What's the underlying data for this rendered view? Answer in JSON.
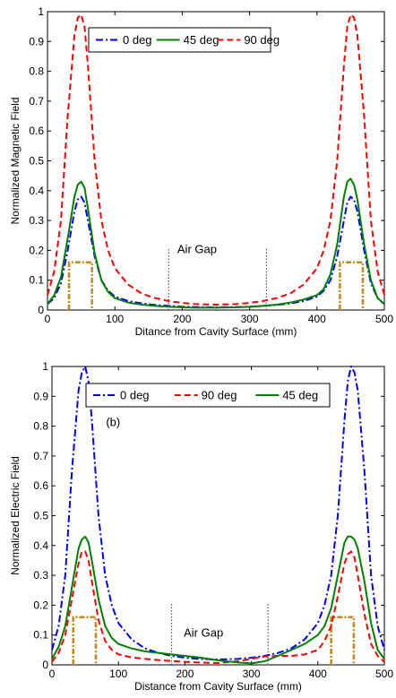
{
  "chart_data": [
    {
      "type": "line",
      "title": "",
      "xlabel": "Ditance from Cavity Surface (mm)",
      "ylabel": "Normalized Magnetic Field",
      "xlim": [
        0,
        500
      ],
      "ylim": [
        0,
        1
      ],
      "xticks": [
        "0",
        "100",
        "200",
        "300",
        "400",
        "500"
      ],
      "yticks": [
        "0",
        "0.1",
        "0.2",
        "0.3",
        "0.4",
        "0.5",
        "0.6",
        "0.7",
        "0.8",
        "0.9",
        "1"
      ],
      "legend": {
        "placement": "top-center"
      },
      "grid": false,
      "annotations": [
        {
          "text": "Air Gap",
          "x": 222,
          "y": 0.19
        }
      ],
      "gap_markers": {
        "x": [
          180,
          325
        ],
        "y_top": 0.21,
        "color": "#555555"
      },
      "rectangles": {
        "color": "#c08a20",
        "height": 0.16,
        "spans": [
          [
            32,
            66
          ],
          [
            434,
            468
          ]
        ]
      },
      "series": [
        {
          "name": "0 deg",
          "color": "#0000ff",
          "dash": "dashdot",
          "x": [
            0,
            10,
            20,
            30,
            40,
            45,
            50,
            55,
            60,
            70,
            80,
            90,
            100,
            120,
            140,
            160,
            180,
            200,
            220,
            250,
            280,
            300,
            320,
            340,
            360,
            380,
            400,
            410,
            420,
            430,
            440,
            445,
            450,
            455,
            460,
            470,
            480,
            490,
            500
          ],
          "y": [
            0.02,
            0.04,
            0.09,
            0.2,
            0.33,
            0.37,
            0.38,
            0.36,
            0.3,
            0.18,
            0.1,
            0.065,
            0.045,
            0.03,
            0.022,
            0.017,
            0.014,
            0.011,
            0.01,
            0.009,
            0.01,
            0.011,
            0.014,
            0.017,
            0.022,
            0.03,
            0.045,
            0.065,
            0.1,
            0.18,
            0.3,
            0.36,
            0.38,
            0.37,
            0.33,
            0.2,
            0.09,
            0.04,
            0.02
          ]
        },
        {
          "name": "45 deg",
          "color": "#008000",
          "dash": "solid",
          "x": [
            0,
            10,
            20,
            30,
            40,
            45,
            50,
            55,
            60,
            70,
            80,
            90,
            100,
            120,
            140,
            160,
            180,
            200,
            220,
            250,
            280,
            300,
            320,
            340,
            360,
            380,
            400,
            410,
            420,
            430,
            440,
            445,
            450,
            455,
            460,
            470,
            480,
            490,
            500
          ],
          "y": [
            0.02,
            0.05,
            0.11,
            0.24,
            0.38,
            0.42,
            0.43,
            0.41,
            0.34,
            0.19,
            0.1,
            0.06,
            0.04,
            0.025,
            0.018,
            0.014,
            0.011,
            0.009,
            0.008,
            0.008,
            0.009,
            0.011,
            0.014,
            0.018,
            0.025,
            0.035,
            0.05,
            0.07,
            0.12,
            0.22,
            0.38,
            0.43,
            0.44,
            0.42,
            0.37,
            0.22,
            0.1,
            0.04,
            0.02
          ]
        },
        {
          "name": "90 deg",
          "color": "#ff0000",
          "dash": "dashed",
          "x": [
            0,
            10,
            20,
            30,
            40,
            45,
            50,
            55,
            60,
            70,
            80,
            90,
            100,
            120,
            140,
            160,
            180,
            200,
            220,
            250,
            280,
            300,
            320,
            340,
            360,
            380,
            400,
            410,
            420,
            430,
            440,
            445,
            450,
            455,
            460,
            470,
            480,
            490,
            500
          ],
          "y": [
            0.05,
            0.13,
            0.3,
            0.65,
            0.92,
            0.98,
            0.99,
            0.95,
            0.82,
            0.5,
            0.3,
            0.2,
            0.14,
            0.085,
            0.055,
            0.04,
            0.03,
            0.024,
            0.02,
            0.018,
            0.02,
            0.024,
            0.03,
            0.04,
            0.055,
            0.085,
            0.14,
            0.2,
            0.3,
            0.5,
            0.82,
            0.95,
            0.99,
            0.98,
            0.92,
            0.65,
            0.3,
            0.13,
            0.05
          ]
        }
      ]
    },
    {
      "type": "line",
      "title": "",
      "xlabel": "Distance from Cavity Surface (mm)",
      "ylabel": "Normalized Electric Field",
      "xlim": [
        0,
        500
      ],
      "ylim": [
        0,
        1
      ],
      "xticks": [
        "0",
        "100",
        "200",
        "300",
        "400",
        "500"
      ],
      "yticks": [
        "0",
        "0.1",
        "0.2",
        "0.3",
        "0.4",
        "0.5",
        "0.6",
        "0.7",
        "0.8",
        "0.9",
        "1"
      ],
      "legend": {
        "placement": "top-center"
      },
      "grid": false,
      "annotations": [
        {
          "text": "(b)",
          "x": 92,
          "y": 0.8
        },
        {
          "text": "Air Gap",
          "x": 228,
          "y": 0.095
        }
      ],
      "gap_markers": {
        "x": [
          180,
          325
        ],
        "y_top": 0.21,
        "color": "#555555"
      },
      "rectangles": {
        "color": "#c08a20",
        "height": 0.16,
        "spans": [
          [
            32,
            66
          ],
          [
            420,
            454
          ]
        ]
      },
      "series": [
        {
          "name": "0 deg",
          "color": "#0000ff",
          "dash": "dashdot",
          "x": [
            0,
            10,
            20,
            30,
            40,
            45,
            50,
            55,
            60,
            70,
            80,
            90,
            100,
            120,
            140,
            160,
            180,
            200,
            220,
            250,
            280,
            300,
            320,
            340,
            360,
            380,
            400,
            410,
            420,
            430,
            440,
            445,
            450,
            455,
            460,
            470,
            480,
            490,
            500
          ],
          "y": [
            0.05,
            0.13,
            0.3,
            0.65,
            0.92,
            0.98,
            1.0,
            0.95,
            0.82,
            0.5,
            0.3,
            0.2,
            0.14,
            0.085,
            0.055,
            0.04,
            0.03,
            0.024,
            0.02,
            0.018,
            0.02,
            0.024,
            0.03,
            0.04,
            0.055,
            0.085,
            0.14,
            0.2,
            0.3,
            0.5,
            0.82,
            0.95,
            1.0,
            0.98,
            0.92,
            0.65,
            0.3,
            0.13,
            0.05
          ]
        },
        {
          "name": "90 deg",
          "color": "#ff0000",
          "dash": "dashed",
          "x": [
            0,
            10,
            20,
            30,
            40,
            45,
            50,
            55,
            60,
            70,
            80,
            90,
            100,
            120,
            140,
            160,
            180,
            200,
            220,
            250,
            280,
            300,
            320,
            340,
            360,
            380,
            400,
            410,
            420,
            430,
            440,
            445,
            450,
            455,
            460,
            470,
            480,
            490,
            500
          ],
          "y": [
            0.01,
            0.04,
            0.1,
            0.22,
            0.34,
            0.38,
            0.38,
            0.35,
            0.28,
            0.15,
            0.08,
            0.05,
            0.035,
            0.025,
            0.02,
            0.016,
            0.013,
            0.01,
            0.008,
            0.006,
            0.012,
            0.02,
            0.028,
            0.03,
            0.03,
            0.035,
            0.05,
            0.08,
            0.13,
            0.23,
            0.34,
            0.37,
            0.38,
            0.36,
            0.3,
            0.17,
            0.07,
            0.03,
            0.01
          ]
        },
        {
          "name": "45 deg",
          "color": "#008000",
          "dash": "solid",
          "x": [
            0,
            10,
            20,
            30,
            40,
            45,
            50,
            55,
            60,
            70,
            80,
            90,
            100,
            120,
            140,
            160,
            180,
            200,
            220,
            250,
            280,
            300,
            320,
            340,
            360,
            380,
            400,
            410,
            420,
            430,
            440,
            445,
            450,
            455,
            460,
            470,
            480,
            490,
            500
          ],
          "y": [
            0.02,
            0.06,
            0.13,
            0.26,
            0.39,
            0.42,
            0.43,
            0.41,
            0.35,
            0.22,
            0.13,
            0.09,
            0.07,
            0.055,
            0.045,
            0.04,
            0.035,
            0.03,
            0.025,
            0.015,
            0.008,
            0.005,
            0.012,
            0.03,
            0.05,
            0.07,
            0.1,
            0.13,
            0.19,
            0.3,
            0.41,
            0.43,
            0.43,
            0.42,
            0.39,
            0.28,
            0.14,
            0.05,
            0.02
          ]
        }
      ]
    }
  ]
}
